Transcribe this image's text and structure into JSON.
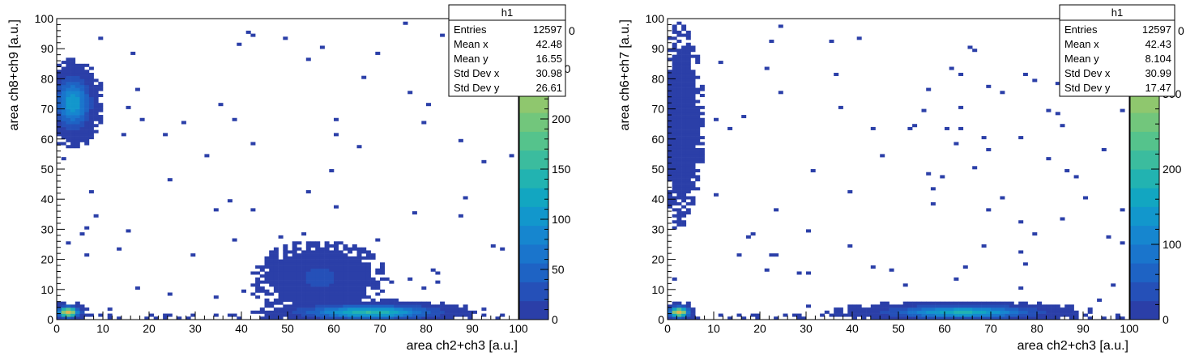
{
  "palette": [
    "#2b3fa8",
    "#2550b8",
    "#1e63c4",
    "#1a75cc",
    "#1686cf",
    "#1297cc",
    "#12a6c1",
    "#22b3b1",
    "#3bbc9e",
    "#55c38c",
    "#72c67c",
    "#8fc76e",
    "#aac663",
    "#c3c35a",
    "#d6bd53",
    "#e2b54f"
  ],
  "chart_data": [
    {
      "type": "heatmap",
      "title": "",
      "xlabel": "area ch2+ch3 [a.u.]",
      "ylabel": "area ch8+ch9 [a.u.]",
      "xlim": [
        0,
        100
      ],
      "ylim": [
        0,
        100
      ],
      "xticks": [
        "0",
        "10",
        "20",
        "30",
        "40",
        "50",
        "60",
        "70",
        "80",
        "90",
        "100"
      ],
      "yticks": [
        "0",
        "10",
        "20",
        "30",
        "40",
        "50",
        "60",
        "70",
        "80",
        "90",
        "100"
      ],
      "colorbar": {
        "max": 300,
        "ticks": [
          "0",
          "50",
          "100",
          "150",
          "200",
          "250"
        ],
        "top_tick_clipped": "0"
      },
      "stats": {
        "title": "h1",
        "rows": [
          {
            "label": "Entries",
            "value": "12597"
          },
          {
            "label": "Mean x",
            "value": "42.48"
          },
          {
            "label": "Mean y",
            "value": "16.55"
          },
          {
            "label": "Std Dev x",
            "value": "30.98"
          },
          {
            "label": "Std Dev y",
            "value": "26.61"
          }
        ]
      },
      "hotspots": [
        {
          "x": 2.5,
          "y": 2.5,
          "peak": 300,
          "sx": 1.3,
          "sy": 1.0
        },
        {
          "x": 68,
          "y": 2.5,
          "peak": 150,
          "sx": 8,
          "sy": 1.3
        },
        {
          "x": 3.5,
          "y": 72,
          "peak": 110,
          "sx": 2.2,
          "sy": 5
        },
        {
          "x": 57,
          "y": 14,
          "peak": 22,
          "sx": 6,
          "sy": 5
        }
      ]
    },
    {
      "type": "heatmap",
      "title": "",
      "xlabel": "area ch2+ch3 [a.u.]",
      "ylabel": "area ch6+ch7 [a.u.]",
      "xlim": [
        0,
        100
      ],
      "ylim": [
        0,
        100
      ],
      "xticks": [
        "0",
        "10",
        "20",
        "30",
        "40",
        "50",
        "60",
        "70",
        "80",
        "90",
        "100"
      ],
      "yticks": [
        "0",
        "10",
        "20",
        "30",
        "40",
        "50",
        "60",
        "70",
        "80",
        "90",
        "100"
      ],
      "colorbar": {
        "max": 400,
        "ticks": [
          "0",
          "100",
          "200",
          "300"
        ],
        "top_tick_clipped": "0"
      },
      "stats": {
        "title": "h1",
        "rows": [
          {
            "label": "Entries",
            "value": "12597"
          },
          {
            "label": "Mean x",
            "value": "42.43"
          },
          {
            "label": "Mean y",
            "value": "8.104"
          },
          {
            "label": "Std Dev x",
            "value": "30.99"
          },
          {
            "label": "Std Dev y",
            "value": "17.47"
          }
        ]
      },
      "hotspots": [
        {
          "x": 2.5,
          "y": 2.5,
          "peak": 400,
          "sx": 1.2,
          "sy": 1.0
        },
        {
          "x": 64,
          "y": 2.5,
          "peak": 180,
          "sx": 9,
          "sy": 1.2
        },
        {
          "x": 3,
          "y": 65,
          "peak": 20,
          "sx": 2.0,
          "sy": 14
        }
      ]
    }
  ]
}
